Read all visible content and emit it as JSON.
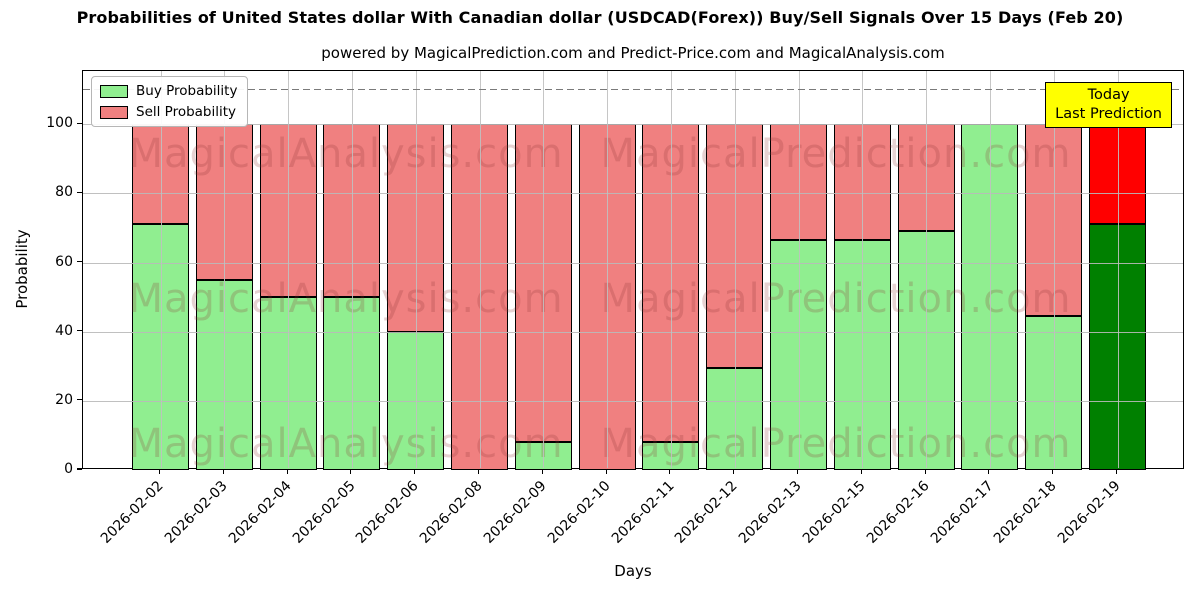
{
  "header": {
    "title": "Probabilities of United States dollar With Canadian dollar (USDCAD(Forex)) Buy/Sell Signals Over 15 Days (Feb 20)",
    "subtitle": "powered by MagicalPrediction.com and Predict-Price.com and MagicalAnalysis.com"
  },
  "legend": {
    "items": [
      {
        "label": "Buy Probability",
        "color": "#90ee90"
      },
      {
        "label": "Sell Probability",
        "color": "#f08080"
      }
    ]
  },
  "annotation": {
    "lines": [
      "Today",
      "Last Prediction"
    ],
    "bg_color": "#ffff00",
    "border_color": "#000000"
  },
  "watermarks": {
    "left_text": "MagicalAnalysis.com",
    "right_text": "MagicalPrediction.com",
    "color": "rgba(139,50,50,0.22)"
  },
  "chart_data": {
    "type": "bar",
    "stacked": true,
    "title": "Probabilities of United States dollar With Canadian dollar (USDCAD(Forex)) Buy/Sell Signals Over 15 Days (Feb 20)",
    "xlabel": "Days",
    "ylabel": "Probability",
    "ylim": [
      0,
      115
    ],
    "yticks": [
      0,
      20,
      40,
      60,
      80,
      100
    ],
    "grid": true,
    "legend_position": "upper left",
    "dashed_guideline_y": 110,
    "bar_edge_color": "#000000",
    "categories": [
      "2026-02-02",
      "2026-02-03",
      "2026-02-04",
      "2026-02-05",
      "2026-02-06",
      "2026-02-08",
      "2026-02-09",
      "2026-02-10",
      "2026-02-11",
      "2026-02-12",
      "2026-02-13",
      "2026-02-15",
      "2026-02-16",
      "2026-02-17",
      "2026-02-18",
      "2026-02-19"
    ],
    "series": [
      {
        "name": "Buy Probability",
        "color": "#90ee90",
        "values": [
          71,
          55,
          50,
          50,
          40,
          0,
          8,
          0,
          8,
          29.5,
          66.5,
          66.5,
          69,
          100,
          44.5,
          71
        ]
      },
      {
        "name": "Sell Probability",
        "color": "#f08080",
        "values": [
          29,
          45,
          50,
          50,
          60,
          100,
          92,
          100,
          92,
          70.5,
          33.5,
          33.5,
          31,
          0,
          55.5,
          29
        ]
      }
    ],
    "today_highlight": {
      "category": "2026-02-19",
      "index": 15,
      "buy_color": "#008000",
      "sell_color": "#ff0000"
    }
  }
}
